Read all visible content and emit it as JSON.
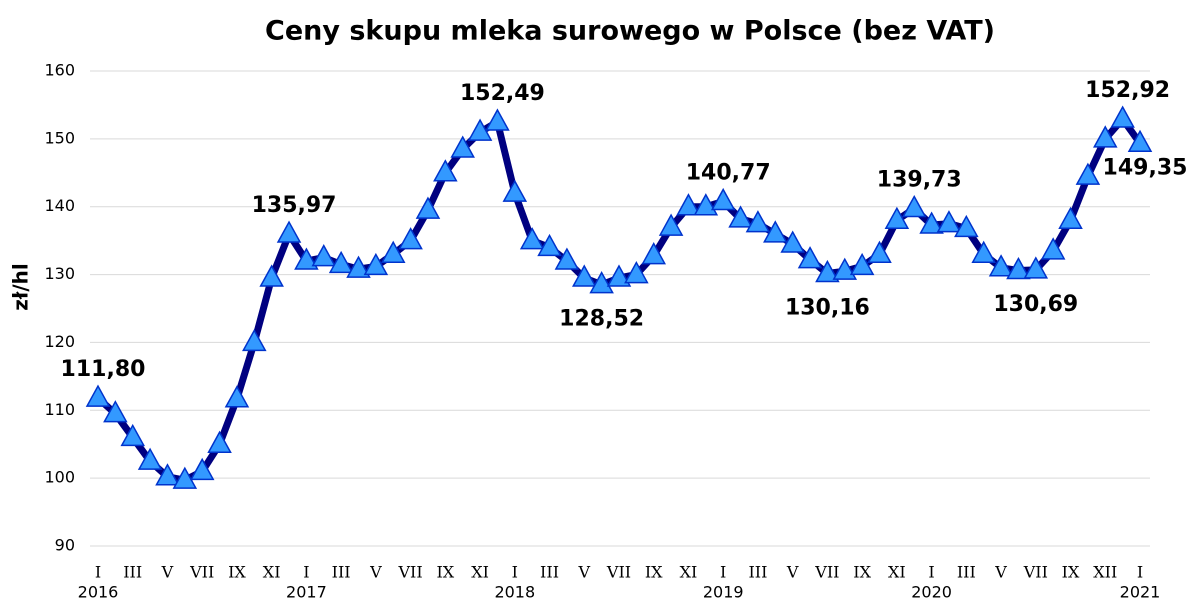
{
  "chart_data": {
    "type": "line",
    "title": "Ceny skupu mleka surowego w Polsce (bez VAT)",
    "y_label": "zł/hl",
    "categories": [
      "I",
      null,
      "III",
      null,
      "V",
      null,
      "VII",
      null,
      "IX",
      null,
      "XI",
      null,
      "I",
      null,
      "III",
      null,
      "V",
      null,
      "VII",
      null,
      "IX",
      null,
      "XI",
      null,
      "I",
      null,
      "III",
      null,
      "V",
      null,
      "VII",
      null,
      "IX",
      null,
      "XI",
      null,
      "I",
      null,
      "III",
      null,
      "V",
      null,
      "VII",
      null,
      "IX",
      null,
      "XI",
      null,
      "I",
      null,
      "III",
      null,
      "V",
      null,
      "VII",
      null,
      "IX",
      null,
      "XII",
      null,
      "I"
    ],
    "years": [
      "2016",
      null,
      null,
      null,
      null,
      null,
      null,
      null,
      null,
      null,
      null,
      null,
      "2017",
      null,
      null,
      null,
      null,
      null,
      null,
      null,
      null,
      null,
      null,
      null,
      "2018",
      null,
      null,
      null,
      null,
      null,
      null,
      null,
      null,
      null,
      null,
      null,
      "2019",
      null,
      null,
      null,
      null,
      null,
      null,
      null,
      null,
      null,
      null,
      null,
      "2020",
      null,
      null,
      null,
      null,
      null,
      null,
      null,
      null,
      null,
      null,
      null,
      "2021"
    ],
    "series": [
      {
        "name": "zł/hl",
        "color": "#000080",
        "marker_color": "#3399ff",
        "values": [
          111.8,
          109.5,
          106,
          102.5,
          100.2,
          99.7,
          101,
          105,
          111.7,
          120,
          129.5,
          135.97,
          132,
          132.5,
          131.5,
          130.8,
          131.2,
          133,
          135,
          139.5,
          145,
          148.5,
          151,
          152.49,
          142,
          135,
          134,
          132,
          129.5,
          128.52,
          129.5,
          130,
          132.8,
          137,
          140,
          140,
          140.77,
          138.2,
          137.5,
          136,
          134.5,
          132.2,
          130.16,
          130.5,
          131.2,
          133,
          138,
          139.73,
          137.3,
          137.5,
          136.8,
          133,
          131,
          130.6,
          130.69,
          133.5,
          138,
          144.5,
          150,
          152.92,
          149.35
        ],
        "value_labels": [
          "111,80",
          null,
          null,
          null,
          null,
          null,
          null,
          null,
          null,
          null,
          null,
          "135,97",
          null,
          null,
          null,
          null,
          null,
          null,
          null,
          null,
          null,
          null,
          null,
          "152,49",
          null,
          null,
          null,
          null,
          null,
          "128,52",
          null,
          null,
          null,
          null,
          null,
          null,
          "140,77",
          null,
          null,
          null,
          null,
          null,
          "130,16",
          null,
          null,
          null,
          null,
          "139,73",
          null,
          null,
          null,
          null,
          null,
          null,
          "130,69",
          null,
          null,
          null,
          null,
          "152,92",
          "149,35"
        ]
      }
    ],
    "ylim": [
      90,
      160
    ],
    "yticks": [
      90,
      100,
      110,
      120,
      130,
      140,
      150,
      160
    ],
    "grid": true
  }
}
